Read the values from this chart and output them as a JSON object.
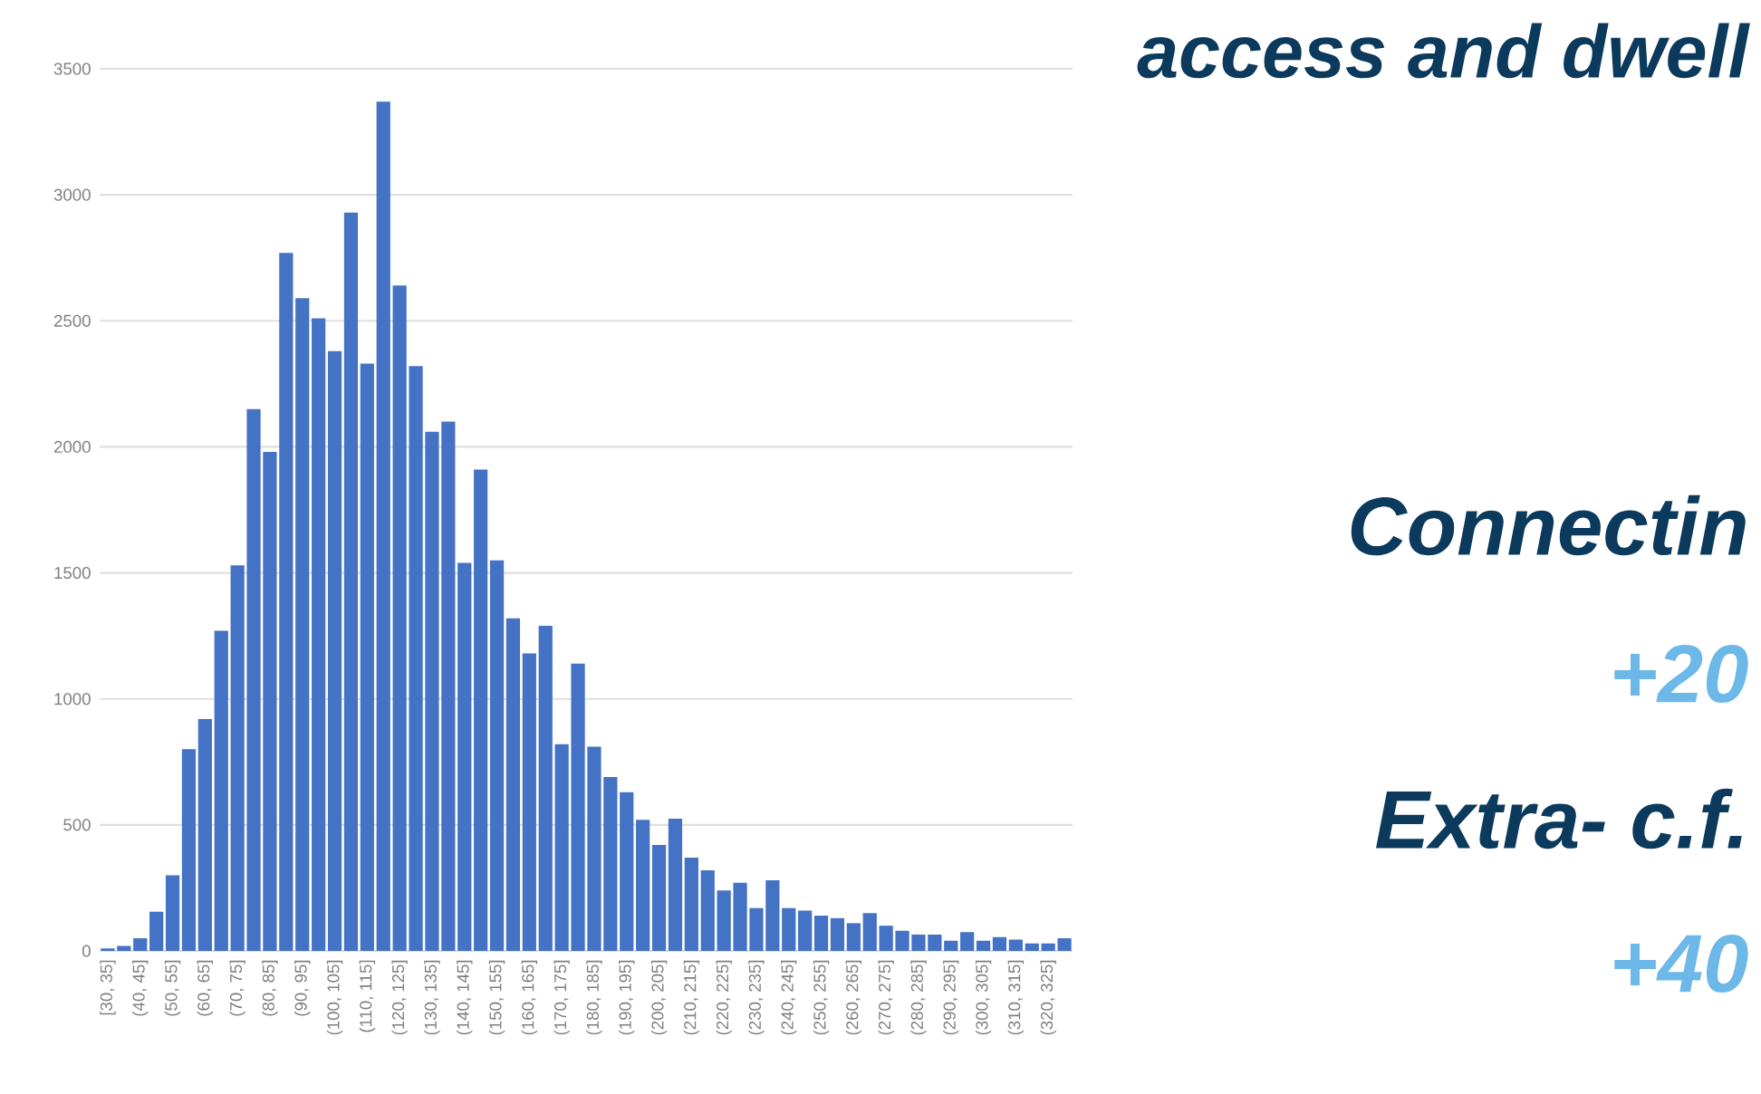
{
  "chart_data": {
    "type": "bar",
    "title": "access and dwell",
    "categories": [
      "[30, 35]",
      null,
      "(40, 45]",
      null,
      "(50, 55]",
      null,
      "(60, 65]",
      null,
      "(70, 75]",
      null,
      "(80, 85]",
      null,
      "(90, 95]",
      null,
      "(100, 105]",
      null,
      "(110, 115]",
      null,
      "(120, 125]",
      null,
      "(130, 135]",
      null,
      "(140, 145]",
      null,
      "(150, 155]",
      null,
      "(160, 165]",
      null,
      "(170, 175]",
      null,
      "(180, 185]",
      null,
      "(190, 195]",
      null,
      "(200, 205]",
      null,
      "(210, 215]",
      null,
      "(220, 225]",
      null,
      "(230, 235]",
      null,
      "(240, 245]",
      null,
      "(250, 255]",
      null,
      "(260, 265]",
      null,
      "(270, 275]",
      null,
      "(280, 285]",
      null,
      "(290, 295]",
      null,
      "(300, 305]",
      null,
      "(310, 315]",
      null,
      "(320, 325]",
      null
    ],
    "values": [
      10,
      20,
      50,
      155,
      300,
      800,
      920,
      1270,
      1530,
      2150,
      1980,
      2770,
      2590,
      2510,
      2380,
      2930,
      2330,
      3370,
      2640,
      2320,
      2060,
      2100,
      1540,
      1910,
      1550,
      1320,
      1180,
      1290,
      820,
      1140,
      810,
      690,
      630,
      520,
      420,
      525,
      370,
      320,
      240,
      270,
      170,
      280,
      170,
      160,
      140,
      130,
      110,
      150,
      100,
      80,
      65,
      65,
      40,
      75,
      40,
      55,
      45,
      30,
      30,
      50
    ],
    "color": "#4472c4",
    "ylim": [
      0,
      3500
    ],
    "yticks": [
      0,
      500,
      1000,
      1500,
      2000,
      2500,
      3000,
      3500
    ],
    "grid": "y",
    "annotations": [
      "Connectin",
      "+20",
      "Extra- c.f.",
      "+40"
    ]
  }
}
